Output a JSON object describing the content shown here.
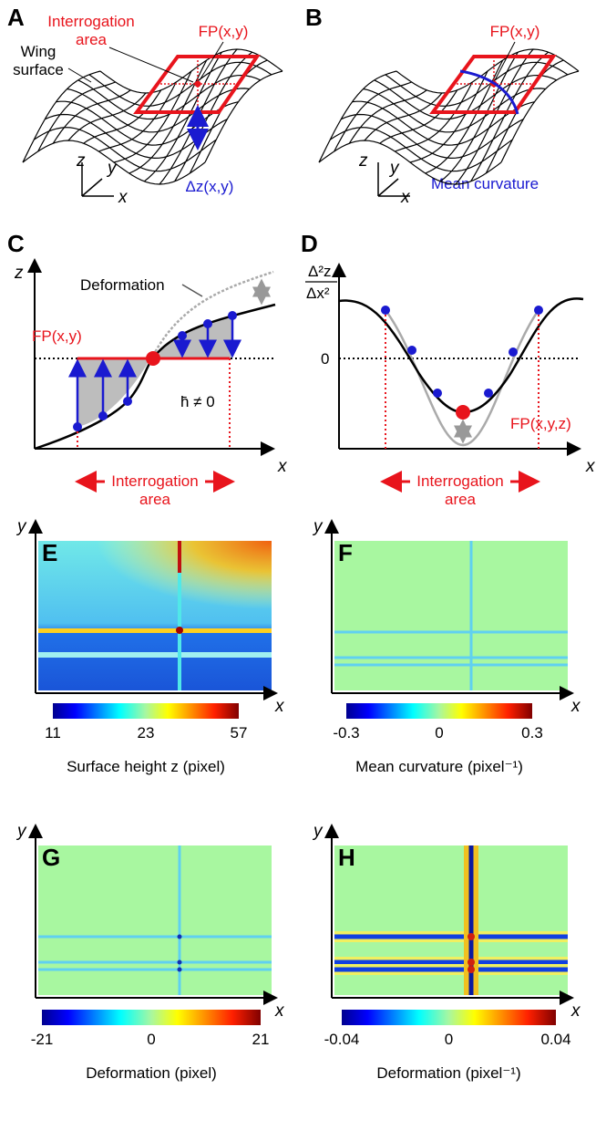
{
  "panels": {
    "a": {
      "label": "A",
      "interrogation": [
        "Interrogation",
        "area"
      ],
      "fp": "FP(x,y)",
      "surface": [
        "Wing",
        "surface"
      ],
      "dz": "Δz(x,y)",
      "axes": [
        "z",
        "y",
        "x"
      ]
    },
    "b": {
      "label": "B",
      "fp": "FP(x,y)",
      "curvature": "Mean curvature",
      "axes": [
        "z",
        "y",
        "x"
      ]
    },
    "c": {
      "label": "C",
      "z": "z",
      "deformation": "Deformation",
      "fp": "FP(x,y)",
      "h": "h̄ ≠ 0",
      "x": "x",
      "interrogation": [
        "Interrogation",
        "area"
      ]
    },
    "d": {
      "label": "D",
      "y_numerator": "Δ²z",
      "y_denominator": "Δx²",
      "zero": "0",
      "fp": "FP(x,y,z)",
      "x": "x",
      "interrogation": [
        "Interrogation",
        "area"
      ]
    },
    "e": {
      "label": "E",
      "y": "y",
      "x": "x",
      "ticks": [
        "11",
        "23",
        "57"
      ],
      "title": "Surface height z (pixel)"
    },
    "f": {
      "label": "F",
      "y": "y",
      "x": "x",
      "ticks": [
        "-0.3",
        "0",
        "0.3"
      ],
      "title": "Mean curvature (pixel⁻¹)"
    },
    "g": {
      "label": "G",
      "y": "y",
      "x": "x",
      "ticks": [
        "-21",
        "0",
        "21"
      ],
      "title": "Deformation (pixel)"
    },
    "h": {
      "label": "H",
      "y": "y",
      "x": "x",
      "ticks": [
        "-0.04",
        "0",
        "0.04"
      ],
      "title": "Deformation (pixel⁻¹)"
    }
  }
}
